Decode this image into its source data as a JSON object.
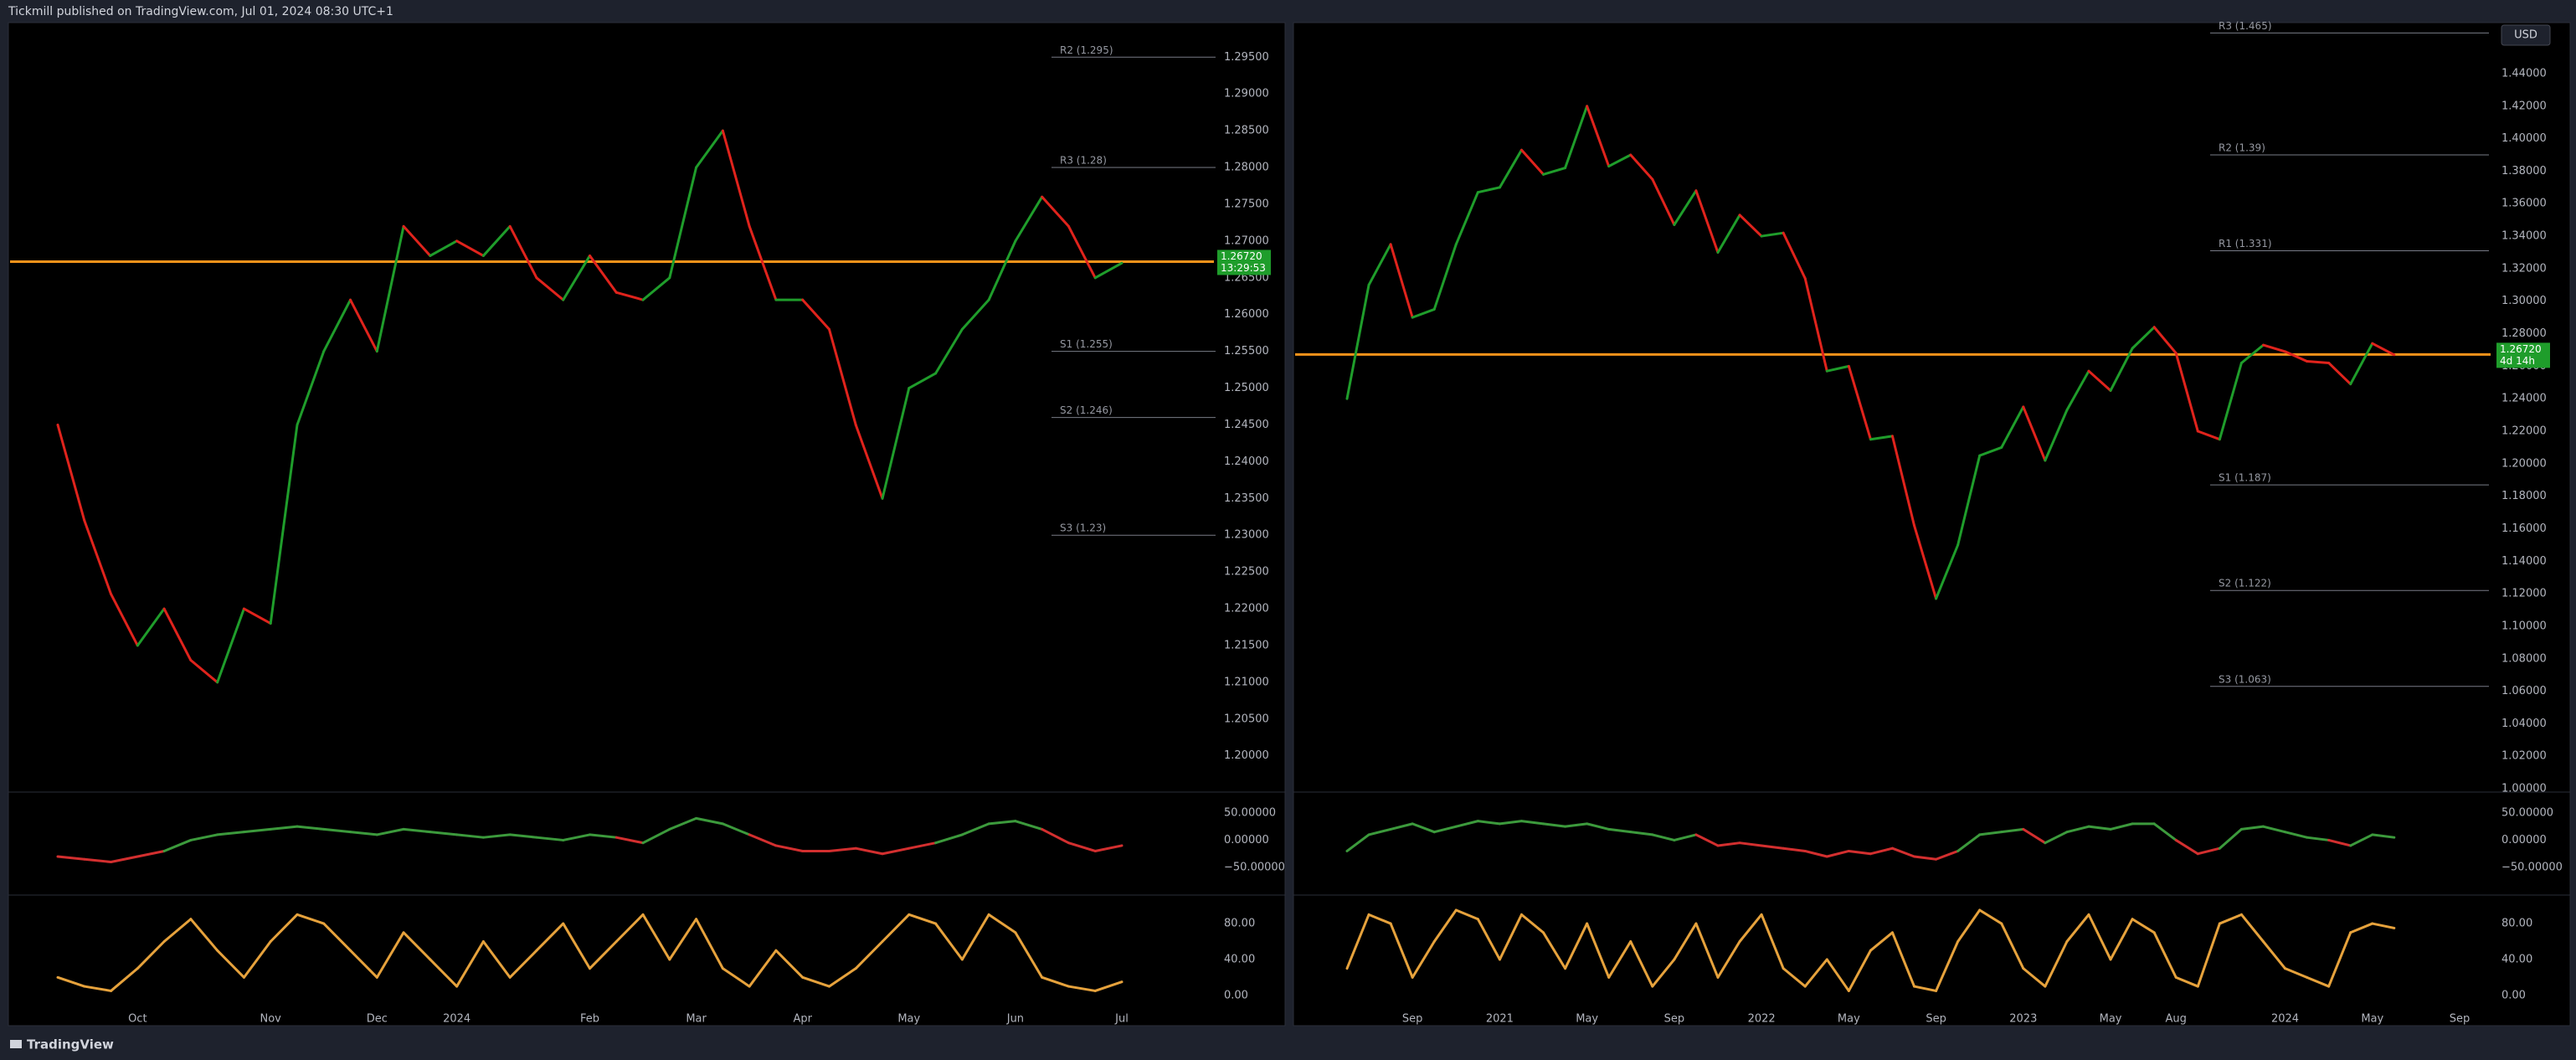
{
  "header": {
    "title": "Tickmill published on TradingView.com, Jul 01, 2024 08:30 UTC+1"
  },
  "footer": {
    "brand": "TradingView"
  },
  "currency": "USD",
  "chart_data": [
    {
      "type": "line",
      "categories": [
        null,
        null,
        null,
        "Oct",
        null,
        null,
        null,
        null,
        "Nov",
        null,
        null,
        null,
        "Dec",
        null,
        null,
        "2024",
        null,
        null,
        null,
        null,
        "Feb",
        null,
        null,
        null,
        "Mar",
        null,
        null,
        null,
        "Apr",
        null,
        null,
        null,
        "May",
        null,
        null,
        null,
        "Jun",
        null,
        null,
        null,
        "Jul"
      ],
      "values": [
        1.245,
        1.232,
        1.222,
        1.215,
        1.22,
        1.213,
        1.21,
        1.22,
        1.218,
        1.245,
        1.255,
        1.262,
        1.255,
        1.272,
        1.268,
        1.27,
        1.268,
        1.272,
        1.265,
        1.262,
        1.268,
        1.263,
        1.262,
        1.265,
        1.28,
        1.285,
        1.272,
        1.262,
        1.262,
        1.258,
        1.245,
        1.235,
        1.25,
        1.252,
        1.258,
        1.262,
        1.27,
        1.276,
        1.272,
        1.265,
        1.267
      ],
      "up_color": "#1f9d2b",
      "down_color": "#e0231c",
      "ylim": [
        1.1953,
        1.2997
      ],
      "yticks": [
        {
          "value": 1.2,
          "label": "1.20000"
        },
        {
          "value": 1.205,
          "label": "1.20500"
        },
        {
          "value": 1.21,
          "label": "1.21000"
        },
        {
          "value": 1.215,
          "label": "1.21500"
        },
        {
          "value": 1.22,
          "label": "1.22000"
        },
        {
          "value": 1.225,
          "label": "1.22500"
        },
        {
          "value": 1.23,
          "label": "1.23000"
        },
        {
          "value": 1.235,
          "label": "1.23500"
        },
        {
          "value": 1.24,
          "label": "1.24000"
        },
        {
          "value": 1.245,
          "label": "1.24500"
        },
        {
          "value": 1.25,
          "label": "1.25000"
        },
        {
          "value": 1.255,
          "label": "1.25500"
        },
        {
          "value": 1.26,
          "label": "1.26000"
        },
        {
          "value": 1.265,
          "label": "1.26500"
        },
        {
          "value": 1.27,
          "label": "1.27000"
        },
        {
          "value": 1.275,
          "label": "1.27500"
        },
        {
          "value": 1.28,
          "label": "1.28000"
        },
        {
          "value": 1.285,
          "label": "1.28500"
        },
        {
          "value": 1.29,
          "label": "1.29000"
        },
        {
          "value": 1.295,
          "label": "1.29500"
        }
      ],
      "pivots": [
        {
          "label": "R2 (1.295)",
          "value": 1.295
        },
        {
          "label": "R3 (1.28)",
          "value": 1.28
        },
        {
          "label": "S1 (1.255)",
          "value": 1.255
        },
        {
          "label": "S2 (1.246)",
          "value": 1.246
        },
        {
          "label": "S3 (1.23)",
          "value": 1.23
        }
      ],
      "last_price": {
        "value": 1.2672,
        "label": "1.26720"
      },
      "countdown": "13:29:53",
      "panes": [
        {
          "type": "momentum",
          "values": [
            -30,
            -35,
            -40,
            -30,
            -20,
            0,
            10,
            15,
            20,
            25,
            20,
            15,
            10,
            20,
            15,
            10,
            5,
            10,
            5,
            0,
            10,
            5,
            -5,
            20,
            40,
            30,
            10,
            -10,
            -20,
            -20,
            -15,
            -25,
            -15,
            -5,
            10,
            30,
            35,
            20,
            -5,
            -20,
            -10
          ],
          "up_color": "#3c9a3c",
          "down_color": "#d32f2f",
          "ylim": [
            -96,
            82
          ],
          "yticks": [
            {
              "value": 50,
              "label": "50.00000"
            },
            {
              "value": 0,
              "label": "0.00000"
            },
            {
              "value": -50,
              "label": "−50.00000"
            }
          ]
        },
        {
          "type": "line",
          "values": [
            20,
            10,
            5,
            30,
            60,
            85,
            50,
            20,
            60,
            90,
            80,
            50,
            20,
            70,
            40,
            10,
            60,
            20,
            50,
            80,
            30,
            60,
            90,
            40,
            85,
            30,
            10,
            50,
            20,
            10,
            30,
            60,
            90,
            80,
            40,
            90,
            70,
            20,
            10,
            5,
            15
          ],
          "color": "#e6a23c",
          "ylim": [
            -17,
            109
          ],
          "yticks": [
            {
              "value": 80,
              "label": "80.00"
            },
            {
              "value": 40,
              "label": "40.00"
            },
            {
              "value": 0,
              "label": "0.00"
            }
          ]
        }
      ]
    },
    {
      "type": "line",
      "categories": [
        null,
        null,
        null,
        "Sep",
        null,
        null,
        null,
        "2021",
        null,
        null,
        null,
        "May",
        null,
        null,
        null,
        "Sep",
        null,
        null,
        null,
        "2022",
        null,
        null,
        null,
        "May",
        null,
        null,
        null,
        "Sep",
        null,
        null,
        null,
        "2023",
        null,
        null,
        null,
        "May",
        null,
        null,
        "Aug",
        null,
        null,
        null,
        null,
        "2024",
        null,
        null,
        null,
        "May",
        null,
        null,
        null,
        "Sep"
      ],
      "values": [
        1.24,
        1.31,
        1.335,
        1.29,
        1.295,
        1.335,
        1.367,
        1.37,
        1.393,
        1.378,
        1.382,
        1.42,
        1.383,
        1.39,
        1.375,
        1.347,
        1.368,
        1.33,
        1.353,
        1.34,
        1.342,
        1.314,
        1.257,
        1.26,
        1.215,
        1.217,
        1.162,
        1.117,
        1.15,
        1.205,
        1.21,
        1.235,
        1.202,
        1.233,
        1.257,
        1.245,
        1.271,
        1.284,
        1.268,
        1.22,
        1.215,
        1.262,
        1.273,
        1.269,
        1.263,
        1.262,
        1.249,
        1.274,
        1.267,
        null,
        null,
        null
      ],
      "up_color": "#1f9d2b",
      "down_color": "#e0231c",
      "ylim": [
        0.999,
        1.4714
      ],
      "yticks": [
        {
          "value": 1,
          "label": "1.00000"
        },
        {
          "value": 1.02,
          "label": "1.02000"
        },
        {
          "value": 1.04,
          "label": "1.04000"
        },
        {
          "value": 1.06,
          "label": "1.06000"
        },
        {
          "value": 1.08,
          "label": "1.08000"
        },
        {
          "value": 1.1,
          "label": "1.10000"
        },
        {
          "value": 1.12,
          "label": "1.12000"
        },
        {
          "value": 1.14,
          "label": "1.14000"
        },
        {
          "value": 1.16,
          "label": "1.16000"
        },
        {
          "value": 1.18,
          "label": "1.18000"
        },
        {
          "value": 1.2,
          "label": "1.20000"
        },
        {
          "value": 1.22,
          "label": "1.22000"
        },
        {
          "value": 1.24,
          "label": "1.24000"
        },
        {
          "value": 1.26,
          "label": "1.26000"
        },
        {
          "value": 1.28,
          "label": "1.28000"
        },
        {
          "value": 1.3,
          "label": "1.30000"
        },
        {
          "value": 1.32,
          "label": "1.32000"
        },
        {
          "value": 1.34,
          "label": "1.34000"
        },
        {
          "value": 1.36,
          "label": "1.36000"
        },
        {
          "value": 1.38,
          "label": "1.38000"
        },
        {
          "value": 1.4,
          "label": "1.40000"
        },
        {
          "value": 1.42,
          "label": "1.42000"
        },
        {
          "value": 1.44,
          "label": "1.44000"
        }
      ],
      "pivots": [
        {
          "label": "R3 (1.465)",
          "value": 1.465
        },
        {
          "label": "R2 (1.39)",
          "value": 1.39
        },
        {
          "label": "R1 (1.331)",
          "value": 1.331
        },
        {
          "label": "S1 (1.187)",
          "value": 1.187
        },
        {
          "label": "S2 (1.122)",
          "value": 1.122
        },
        {
          "label": "S3 (1.063)",
          "value": 1.063
        }
      ],
      "last_price": {
        "value": 1.2672,
        "label": "1.26720"
      },
      "countdown": "4d 14h",
      "panes": [
        {
          "type": "momentum",
          "values": [
            -20,
            10,
            20,
            30,
            15,
            25,
            35,
            30,
            35,
            30,
            25,
            30,
            20,
            15,
            10,
            0,
            10,
            -10,
            -5,
            -10,
            -15,
            -20,
            -30,
            -20,
            -25,
            -15,
            -30,
            -35,
            -20,
            10,
            15,
            20,
            -5,
            15,
            25,
            20,
            30,
            30,
            0,
            -25,
            -15,
            20,
            25,
            15,
            5,
            0,
            -10,
            10,
            5
          ],
          "up_color": "#3c9a3c",
          "down_color": "#d32f2f",
          "ylim": [
            -96,
            82
          ],
          "yticks": [
            {
              "value": 50,
              "label": "50.00000"
            },
            {
              "value": 0,
              "label": "0.00000"
            },
            {
              "value": -50,
              "label": "−50.00000"
            }
          ]
        },
        {
          "type": "line",
          "values": [
            30,
            90,
            80,
            20,
            60,
            95,
            85,
            40,
            90,
            70,
            30,
            80,
            20,
            60,
            10,
            40,
            80,
            20,
            60,
            90,
            30,
            10,
            40,
            5,
            50,
            70,
            10,
            5,
            60,
            95,
            80,
            30,
            10,
            60,
            90,
            40,
            85,
            70,
            20,
            10,
            80,
            90,
            60,
            30,
            20,
            10,
            70,
            80,
            75
          ],
          "color": "#e6a23c",
          "ylim": [
            -17,
            109
          ],
          "yticks": [
            {
              "value": 80,
              "label": "80.00"
            },
            {
              "value": 40,
              "label": "40.00"
            },
            {
              "value": 0,
              "label": "0.00"
            }
          ]
        }
      ]
    }
  ]
}
